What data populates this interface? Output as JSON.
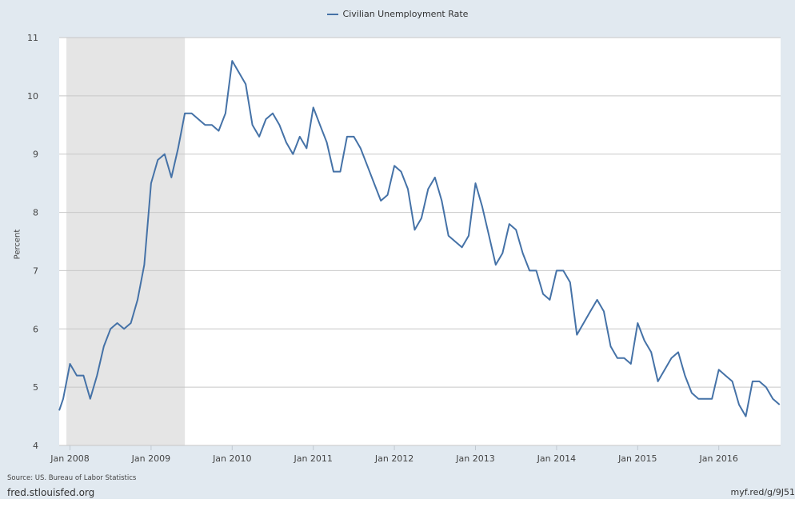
{
  "legend": {
    "label": "Civilian Unemployment Rate",
    "color": "#4572a7"
  },
  "footer": {
    "source": "Source: US. Bureau of Labor Statistics",
    "site": "fred.stlouisfed.org",
    "shortlink": "myf.red/g/9J51"
  },
  "colors": {
    "background": "#e1e9f0",
    "plot": "#ffffff",
    "recession": "#e5e5e5",
    "line": "#4572a7",
    "grid": "#c8c8c8"
  },
  "chart_data": {
    "type": "line",
    "title": "",
    "xlabel": "",
    "ylabel": "Percent",
    "ylim": [
      4,
      11
    ],
    "yticks": [
      4,
      5,
      6,
      7,
      8,
      9,
      10,
      11
    ],
    "xticks": [
      "Jan 2008",
      "Jan 2009",
      "Jan 2010",
      "Jan 2011",
      "Jan 2012",
      "Jan 2013",
      "Jan 2014",
      "Jan 2015",
      "Jan 2016"
    ],
    "grid": true,
    "legend_position": "top",
    "recession_shading": {
      "start": "2007-12",
      "end": "2009-06"
    },
    "series": [
      {
        "name": "Civilian Unemployment Rate",
        "start": "2007-11",
        "frequency": "monthly",
        "values": [
          4.6,
          4.8,
          5.4,
          5.2,
          5.2,
          4.8,
          5.2,
          5.7,
          6.0,
          6.1,
          6.0,
          6.1,
          6.5,
          7.1,
          8.5,
          8.9,
          9.0,
          8.6,
          9.1,
          9.7,
          9.7,
          9.6,
          9.5,
          9.5,
          9.4,
          9.7,
          10.6,
          10.4,
          10.2,
          9.5,
          9.3,
          9.6,
          9.7,
          9.5,
          9.2,
          9.0,
          9.3,
          9.1,
          9.8,
          9.5,
          9.2,
          8.7,
          8.7,
          9.3,
          9.3,
          9.1,
          8.8,
          8.5,
          8.2,
          8.3,
          8.8,
          8.7,
          8.4,
          7.7,
          7.9,
          8.4,
          8.6,
          8.2,
          7.6,
          7.5,
          7.4,
          7.6,
          8.5,
          8.1,
          7.6,
          7.1,
          7.3,
          7.8,
          7.7,
          7.3,
          7.0,
          7.0,
          6.6,
          6.5,
          7.0,
          7.0,
          6.8,
          5.9,
          6.1,
          6.3,
          6.5,
          6.3,
          5.7,
          5.5,
          5.5,
          5.4,
          6.1,
          5.8,
          5.6,
          5.1,
          5.3,
          5.5,
          5.6,
          5.2,
          4.9,
          4.8,
          4.8,
          4.8,
          5.3,
          5.2,
          5.1,
          4.7,
          4.5,
          5.1,
          5.1,
          5.0,
          4.8,
          4.7
        ]
      }
    ]
  }
}
